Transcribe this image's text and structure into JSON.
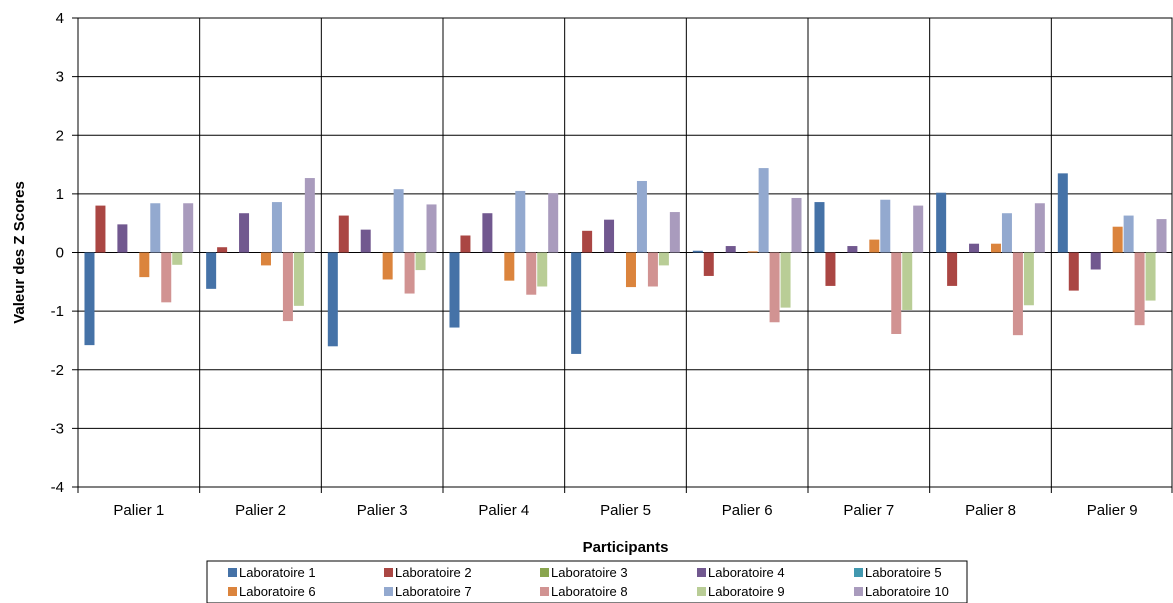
{
  "chart_data": {
    "type": "bar",
    "title": "",
    "xlabel": "Participants",
    "ylabel": "Valeur des Z Scores",
    "ylim": [
      -4,
      4
    ],
    "yticks": [
      -4,
      -3,
      -2,
      -1,
      0,
      1,
      2,
      3,
      4
    ],
    "grid": true,
    "legend_position": "bottom",
    "categories": [
      "Palier 1",
      "Palier 2",
      "Palier 3",
      "Palier 4",
      "Palier 5",
      "Palier 6",
      "Palier 7",
      "Palier 8",
      "Palier 9"
    ],
    "series": [
      {
        "name": "Laboratoire 1",
        "color": "#4572A7",
        "values": [
          -1.58,
          -0.62,
          -1.6,
          -1.28,
          -1.73,
          0.03,
          0.86,
          1.02,
          1.35
        ]
      },
      {
        "name": "Laboratoire 2",
        "color": "#AA4643",
        "values": [
          0.8,
          0.09,
          0.63,
          0.29,
          0.37,
          -0.4,
          -0.57,
          -0.57,
          -0.65
        ]
      },
      {
        "name": "Laboratoire 3",
        "color": "#89A54E",
        "values": [
          0,
          0,
          0,
          0,
          0,
          0,
          0,
          0,
          0
        ]
      },
      {
        "name": "Laboratoire 4",
        "color": "#71588F",
        "values": [
          0.48,
          0.67,
          0.39,
          0.67,
          0.56,
          0.11,
          0.11,
          0.15,
          -0.29
        ]
      },
      {
        "name": "Laboratoire 5",
        "color": "#4198AF",
        "values": [
          0,
          0,
          0,
          0,
          0,
          0,
          0,
          0,
          0
        ]
      },
      {
        "name": "Laboratoire 6",
        "color": "#DB843D",
        "values": [
          -0.42,
          -0.22,
          -0.46,
          -0.48,
          -0.59,
          0.02,
          0.22,
          0.15,
          0.44
        ]
      },
      {
        "name": "Laboratoire 7",
        "color": "#93A9CF",
        "values": [
          0.84,
          0.86,
          1.08,
          1.05,
          1.22,
          1.44,
          0.9,
          0.67,
          0.63
        ]
      },
      {
        "name": "Laboratoire 8",
        "color": "#D19392",
        "values": [
          -0.85,
          -1.17,
          -0.7,
          -0.72,
          -0.58,
          -1.19,
          -1.39,
          -1.41,
          -1.24
        ]
      },
      {
        "name": "Laboratoire 9",
        "color": "#B9CD96",
        "values": [
          -0.21,
          -0.91,
          -0.3,
          -0.58,
          -0.22,
          -0.94,
          -0.98,
          -0.9,
          -0.82
        ]
      },
      {
        "name": "Laboratoire 10",
        "color": "#A99BBD",
        "values": [
          0.84,
          1.27,
          0.82,
          1.01,
          0.69,
          0.93,
          0.8,
          0.84,
          0.57
        ]
      }
    ]
  }
}
